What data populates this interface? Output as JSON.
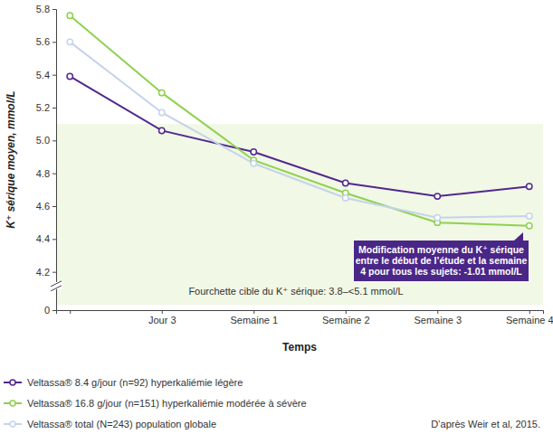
{
  "chart_data": {
    "type": "line",
    "marker": "circle",
    "x_label": "Temps",
    "y_label": "K⁺ sérique moyen, mmol/L",
    "categories": [
      null,
      "Jour 3",
      "Semaine 1",
      "Semaine 2",
      "Semaine 3",
      "Semaine 4"
    ],
    "series": [
      {
        "name": "Veltassa® 8.4 g/jour (n=92) hyperkaliémie légère",
        "color": "#51288f",
        "values": [
          5.39,
          5.06,
          4.93,
          4.74,
          4.66,
          4.72
        ]
      },
      {
        "name": "Veltassa® 16.8 g/jour (n=151) hyperkaliémie modérée à sévère",
        "color": "#8ed14f",
        "values": [
          5.76,
          5.29,
          4.88,
          4.68,
          4.5,
          4.48
        ]
      },
      {
        "name": "Veltassa® total (N=243) population globale",
        "color": "#c5d3ea",
        "values": [
          5.6,
          5.17,
          4.86,
          4.65,
          4.53,
          4.54
        ]
      }
    ],
    "ylim": [
      0,
      5.8
    ],
    "yticks": [
      0,
      4.2,
      4.4,
      4.6,
      4.8,
      {
        "value": 5,
        "label": "5.0"
      },
      5.2,
      5.4,
      5.6,
      5.8
    ],
    "grid": false,
    "legend": "bottom",
    "target_range": [
      3.8,
      5.1
    ],
    "annotations": [
      "Fourchette cible du K⁺ sérique: 3.8–<5.1 mmol/L"
    ],
    "callout": [
      "Modification moyenne du K⁺ sérique",
      "entre le début de l’étude et la semaine",
      "4 pour tous les sujets: -1.01 mmol/L"
    ],
    "source": "D’après Weir et al, 2015."
  }
}
